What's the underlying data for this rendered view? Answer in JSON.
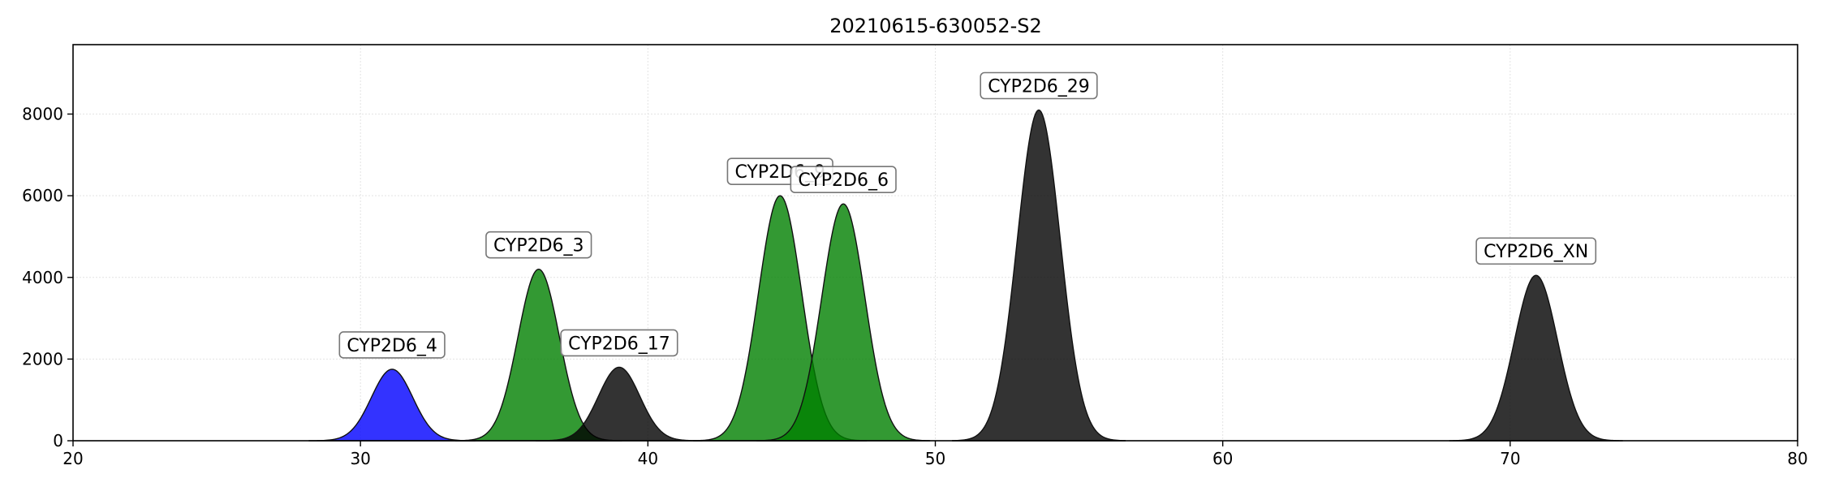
{
  "chart_data": {
    "type": "area",
    "title": "20210615-630052-S2",
    "xlabel": "",
    "ylabel": "",
    "xlim": [
      20,
      80
    ],
    "ylim": [
      0,
      9700
    ],
    "x_ticks": [
      20,
      30,
      40,
      50,
      60,
      70,
      80
    ],
    "y_ticks": [
      0,
      2000,
      4000,
      6000,
      8000
    ],
    "grid": true,
    "peaks": [
      {
        "label": "CYP2D6_4",
        "center": 31.1,
        "height": 1750,
        "sigma": 0.72,
        "color": "#0000ff"
      },
      {
        "label": "CYP2D6_3",
        "center": 36.2,
        "height": 4200,
        "sigma": 0.72,
        "color": "#008000"
      },
      {
        "label": "CYP2D6_17",
        "center": 39.0,
        "height": 1800,
        "sigma": 0.72,
        "color": "#000000"
      },
      {
        "label": "CYP2D6_9",
        "center": 44.6,
        "height": 6000,
        "sigma": 0.75,
        "color": "#008000"
      },
      {
        "label": "CYP2D6_6",
        "center": 46.8,
        "height": 5800,
        "sigma": 0.75,
        "color": "#008000"
      },
      {
        "label": "CYP2D6_29",
        "center": 53.6,
        "height": 8100,
        "sigma": 0.75,
        "color": "#000000"
      },
      {
        "label": "CYP2D6_XN",
        "center": 70.9,
        "height": 4050,
        "sigma": 0.75,
        "color": "#000000"
      }
    ]
  }
}
